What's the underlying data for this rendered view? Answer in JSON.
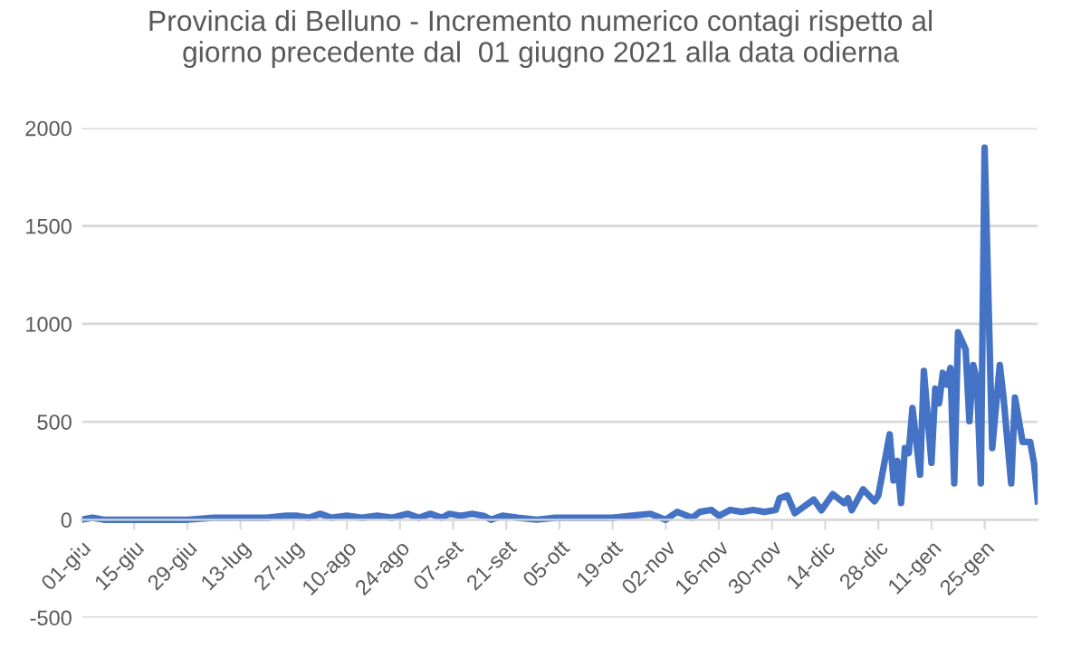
{
  "chart_data": {
    "type": "line",
    "title": "Provincia di Belluno - Incremento numerico contagi rispetto al\ngiorno precedente dal  01 giugno 2021 alla data odierna",
    "x": [
      "2021-06-01",
      "2021-06-04",
      "2021-06-07",
      "2021-06-15",
      "2021-06-22",
      "2021-06-29",
      "2021-07-06",
      "2021-07-13",
      "2021-07-20",
      "2021-07-25",
      "2021-07-28",
      "2021-07-31",
      "2021-08-03",
      "2021-08-06",
      "2021-08-10",
      "2021-08-14",
      "2021-08-18",
      "2021-08-22",
      "2021-08-26",
      "2021-08-29",
      "2021-09-01",
      "2021-09-04",
      "2021-09-06",
      "2021-09-09",
      "2021-09-12",
      "2021-09-15",
      "2021-09-17",
      "2021-09-20",
      "2021-09-24",
      "2021-09-29",
      "2021-10-04",
      "2021-10-09",
      "2021-10-14",
      "2021-10-19",
      "2021-10-24",
      "2021-10-29",
      "2021-11-02",
      "2021-11-05",
      "2021-11-09",
      "2021-11-11",
      "2021-11-14",
      "2021-11-16",
      "2021-11-19",
      "2021-11-22",
      "2021-11-25",
      "2021-11-28",
      "2021-12-01",
      "2021-12-02",
      "2021-12-04",
      "2021-12-06",
      "2021-12-11",
      "2021-12-13",
      "2021-12-16",
      "2021-12-19",
      "2021-12-20",
      "2021-12-21",
      "2021-12-24",
      "2021-12-27",
      "2021-12-28",
      "2021-12-31",
      "2022-01-01",
      "2022-01-02",
      "2022-01-03",
      "2022-01-04",
      "2022-01-05",
      "2022-01-06",
      "2022-01-08",
      "2022-01-09",
      "2022-01-11",
      "2022-01-12",
      "2022-01-13",
      "2022-01-14",
      "2022-01-15",
      "2022-01-16",
      "2022-01-17",
      "2022-01-18",
      "2022-01-20",
      "2022-01-21",
      "2022-01-22",
      "2022-01-23",
      "2022-01-24",
      "2022-01-25",
      "2022-01-27",
      "2022-01-29",
      "2022-01-30",
      "2022-02-01",
      "2022-02-02",
      "2022-02-04",
      "2022-02-06",
      "2022-02-07",
      "2022-02-08"
    ],
    "series": [
      {
        "color": "#4472c4",
        "values": [
          0,
          10,
          0,
          0,
          0,
          0,
          10,
          10,
          10,
          20,
          20,
          10,
          30,
          10,
          20,
          10,
          20,
          10,
          30,
          10,
          30,
          10,
          30,
          20,
          30,
          20,
          0,
          20,
          10,
          0,
          10,
          10,
          10,
          10,
          20,
          30,
          0,
          40,
          10,
          40,
          50,
          20,
          50,
          40,
          50,
          40,
          50,
          109,
          124,
          33,
          103,
          48,
          130,
          85,
          109,
          48,
          155,
          94,
          124,
          436,
          200,
          300,
          85,
          366,
          340,
          570,
          230,
          760,
          290,
          670,
          594,
          750,
          690,
          775,
          185,
          957,
          870,
          503,
          790,
          710,
          185,
          1900,
          366,
          790,
          620,
          185,
          624,
          397,
          397,
          290,
          94
        ]
      }
    ],
    "xlim": [
      "2021-06-01",
      "2022-02-08"
    ],
    "xticks": [
      {
        "value": "2021-06-01",
        "label": "01-giu"
      },
      {
        "value": "2021-06-15",
        "label": "15-giu"
      },
      {
        "value": "2021-06-29",
        "label": "29-giu"
      },
      {
        "value": "2021-07-13",
        "label": "13-lug"
      },
      {
        "value": "2021-07-27",
        "label": "27-lug"
      },
      {
        "value": "2021-08-10",
        "label": "10-ago"
      },
      {
        "value": "2021-08-24",
        "label": "24-ago"
      },
      {
        "value": "2021-09-07",
        "label": "07-set"
      },
      {
        "value": "2021-09-21",
        "label": "21-set"
      },
      {
        "value": "2021-10-05",
        "label": "05-ott"
      },
      {
        "value": "2021-10-19",
        "label": "19-ott"
      },
      {
        "value": "2021-11-02",
        "label": "02-nov"
      },
      {
        "value": "2021-11-16",
        "label": "16-nov"
      },
      {
        "value": "2021-11-30",
        "label": "30-nov"
      },
      {
        "value": "2021-12-14",
        "label": "14-dic"
      },
      {
        "value": "2021-12-28",
        "label": "28-dic"
      },
      {
        "value": "2022-01-11",
        "label": "11-gen"
      },
      {
        "value": "2022-01-25",
        "label": "25-gen"
      }
    ],
    "ylim": [
      -500,
      2000
    ],
    "yticks": [
      -500,
      0,
      500,
      1000,
      1500,
      2000
    ],
    "grid": "y",
    "legend": false,
    "marker": "none",
    "line_style": "solid"
  }
}
